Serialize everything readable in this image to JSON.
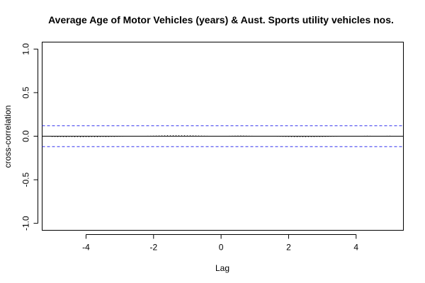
{
  "chart_data": {
    "type": "bar",
    "title": "Average Age of Motor Vehicles (years) & Aust. Sports utility vehicles nos.",
    "xlabel": "Lag",
    "ylabel": "cross-correlation",
    "xlim": [
      -5.3,
      5.4
    ],
    "ylim": [
      -1.08,
      1.08
    ],
    "x_ticks": [
      -4,
      -2,
      0,
      2,
      4
    ],
    "x_tick_labels": [
      "-4",
      "-2",
      "0",
      "2",
      "4"
    ],
    "y_ticks": [
      -1.0,
      -0.5,
      0.0,
      0.5,
      1.0
    ],
    "y_tick_labels": [
      "-1.0",
      "-0.5",
      "0.0",
      "0.5",
      "1.0"
    ],
    "confidence_bounds": [
      0.12,
      -0.12
    ],
    "confidence_color": "#3333ee",
    "lag_range": [
      -5.0,
      5.0
    ],
    "lag_step": 0.0833333,
    "series": [
      {
        "name": "cross-correlation",
        "values": [
          -0.01,
          -0.01,
          -0.012,
          -0.01,
          -0.011,
          -0.012,
          -0.009,
          -0.01,
          -0.012,
          -0.011,
          -0.013,
          -0.012,
          -0.011,
          -0.012,
          -0.01,
          -0.011,
          -0.012,
          -0.01,
          -0.009,
          -0.011,
          -0.01,
          -0.008,
          -0.009,
          -0.007,
          -0.006,
          -0.005,
          -0.004,
          -0.003,
          -0.002,
          -0.001,
          0.0,
          0.002,
          0.003,
          0.004,
          0.005,
          0.006,
          0.007,
          0.008,
          0.009,
          0.01,
          0.011,
          0.012,
          0.011,
          0.012,
          0.013,
          0.012,
          0.011,
          0.012,
          0.01,
          0.011,
          0.01,
          0.009,
          0.008,
          0.007,
          0.006,
          0.005,
          0.004,
          0.003,
          0.002,
          0.001,
          0.002,
          0.003,
          0.004,
          0.005,
          0.006,
          0.007,
          0.008,
          0.009,
          0.008,
          0.007,
          0.006,
          0.005,
          0.004,
          0.003,
          0.002,
          0.001,
          -0.001,
          -0.002,
          -0.003,
          -0.004,
          -0.005,
          -0.006,
          -0.007,
          -0.008,
          -0.009,
          -0.01,
          -0.011,
          -0.012,
          -0.011,
          -0.012,
          -0.013,
          -0.012,
          -0.011,
          -0.012,
          -0.01,
          -0.011,
          -0.01,
          -0.009,
          -0.008,
          -0.007,
          -0.006,
          -0.005,
          -0.004,
          -0.003,
          -0.002,
          -0.001,
          0.0,
          0.001,
          0.002,
          0.003,
          0.004,
          0.005,
          0.006,
          0.005,
          0.004,
          0.003,
          0.002,
          0.003,
          0.004,
          0.005,
          0.006
        ]
      }
    ]
  }
}
